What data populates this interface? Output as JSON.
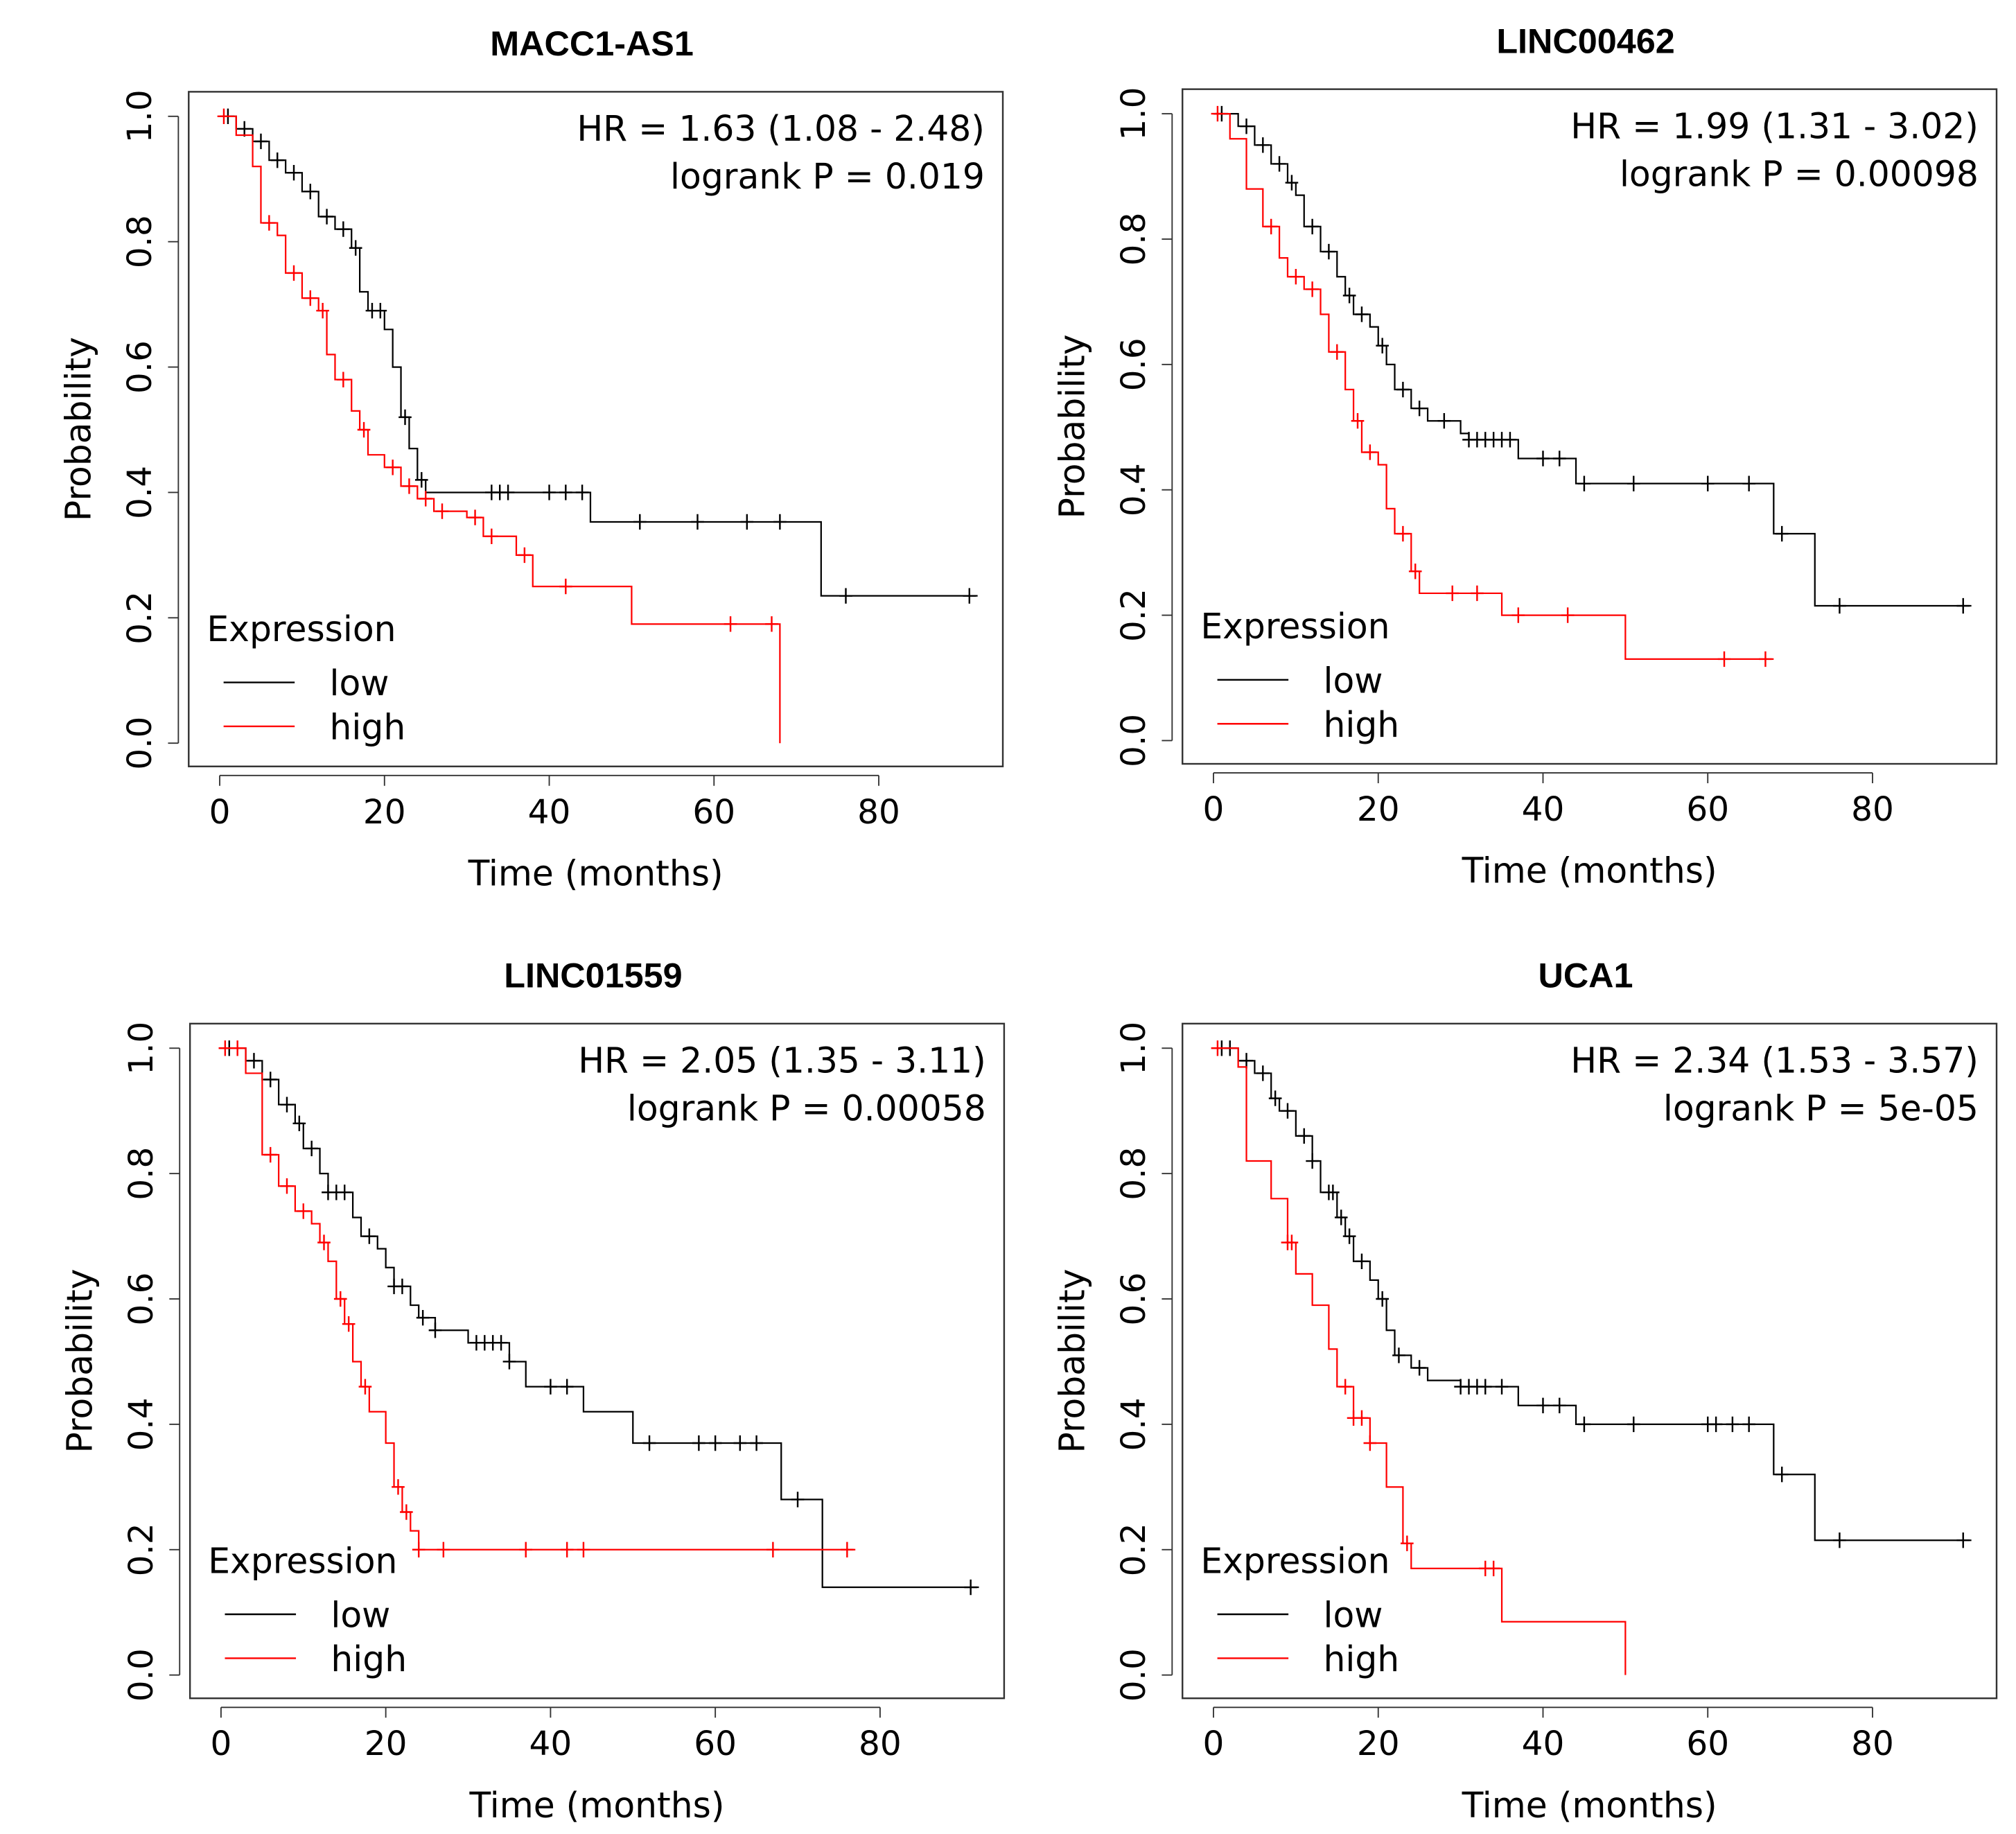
{
  "chart_data": [
    {
      "type": "line",
      "title": "MACC1-AS1",
      "xlabel": "Time (months)",
      "ylabel": "Probability",
      "xlim": [
        0,
        92
      ],
      "ylim": [
        0,
        1
      ],
      "xticks": [
        "0",
        "20",
        "40",
        "60",
        "80"
      ],
      "yticks": [
        "0.0",
        "0.2",
        "0.4",
        "0.6",
        "0.8",
        "1.0"
      ],
      "hr_text": "HR = 1.63 (1.08 - 2.48)",
      "p_text": "logrank P = 0.019",
      "legend": {
        "title": "Expression",
        "position": "bottom-left",
        "entries": [
          "low",
          "high"
        ]
      },
      "series": [
        {
          "name": "low",
          "color": "#000000",
          "steps": [
            [
              0,
              1
            ],
            [
              2,
              0.98
            ],
            [
              4,
              0.96
            ],
            [
              6,
              0.93
            ],
            [
              8,
              0.91
            ],
            [
              10,
              0.88
            ],
            [
              12,
              0.84
            ],
            [
              14,
              0.82
            ],
            [
              16,
              0.79
            ],
            [
              17,
              0.72
            ],
            [
              18,
              0.69
            ],
            [
              20,
              0.66
            ],
            [
              21,
              0.6
            ],
            [
              22,
              0.52
            ],
            [
              23,
              0.47
            ],
            [
              24,
              0.42
            ],
            [
              25,
              0.4
            ],
            [
              45,
              0.353
            ],
            [
              73,
              0.235
            ],
            [
              92,
              0.235
            ]
          ],
          "censor": [
            1,
            3,
            5,
            7,
            9,
            11,
            13,
            15,
            16.5,
            18.5,
            19.5,
            22.5,
            24.5,
            33,
            34,
            35,
            40,
            42,
            44,
            51,
            58,
            64,
            68,
            76,
            91
          ]
        },
        {
          "name": "high",
          "color": "#ff0000",
          "steps": [
            [
              0,
              1
            ],
            [
              2,
              0.97
            ],
            [
              4,
              0.92
            ],
            [
              5,
              0.83
            ],
            [
              7,
              0.81
            ],
            [
              8,
              0.75
            ],
            [
              10,
              0.71
            ],
            [
              12,
              0.69
            ],
            [
              13,
              0.62
            ],
            [
              14,
              0.58
            ],
            [
              16,
              0.53
            ],
            [
              17,
              0.5
            ],
            [
              18,
              0.46
            ],
            [
              20,
              0.44
            ],
            [
              22,
              0.41
            ],
            [
              24,
              0.39
            ],
            [
              26,
              0.37
            ],
            [
              30,
              0.36
            ],
            [
              32,
              0.33
            ],
            [
              36,
              0.3
            ],
            [
              38,
              0.25
            ],
            [
              50,
              0.19
            ],
            [
              68,
              0.19
            ],
            [
              68,
              0
            ]
          ],
          "censor": [
            0.5,
            6,
            9,
            11,
            12.5,
            15,
            17.5,
            21,
            23,
            25,
            27,
            31,
            33,
            37,
            42,
            62,
            67
          ]
        }
      ]
    },
    {
      "type": "line",
      "title": "LINC00462",
      "xlabel": "Time (months)",
      "ylabel": "Probability",
      "xlim": [
        0,
        92
      ],
      "ylim": [
        0,
        1
      ],
      "xticks": [
        "0",
        "20",
        "40",
        "60",
        "80"
      ],
      "yticks": [
        "0.0",
        "0.2",
        "0.4",
        "0.6",
        "0.8",
        "1.0"
      ],
      "hr_text": "HR = 1.99 (1.31 - 3.02)",
      "p_text": "logrank P = 0.00098",
      "legend": {
        "title": "Expression",
        "position": "bottom-left",
        "entries": [
          "low",
          "high"
        ]
      },
      "series": [
        {
          "name": "low",
          "color": "#000000",
          "steps": [
            [
              0,
              1
            ],
            [
              3,
              0.98
            ],
            [
              5,
              0.95
            ],
            [
              7,
              0.92
            ],
            [
              9,
              0.89
            ],
            [
              10,
              0.87
            ],
            [
              11,
              0.82
            ],
            [
              13,
              0.78
            ],
            [
              15,
              0.74
            ],
            [
              16,
              0.71
            ],
            [
              17,
              0.68
            ],
            [
              19,
              0.66
            ],
            [
              20,
              0.63
            ],
            [
              21,
              0.6
            ],
            [
              22,
              0.56
            ],
            [
              24,
              0.53
            ],
            [
              26,
              0.51
            ],
            [
              30,
              0.49
            ],
            [
              31,
              0.48
            ],
            [
              37,
              0.45
            ],
            [
              44,
              0.41
            ],
            [
              67,
              0.41
            ],
            [
              68,
              0.33
            ],
            [
              73,
              0.215
            ],
            [
              92,
              0.215
            ]
          ],
          "censor": [
            1,
            4,
            6,
            8,
            9.5,
            12,
            14,
            16.5,
            18,
            20.5,
            23,
            25,
            28,
            31,
            32,
            33,
            34,
            35,
            36,
            40,
            42,
            45,
            51,
            60,
            65,
            69,
            76,
            91
          ]
        },
        {
          "name": "high",
          "color": "#ff0000",
          "steps": [
            [
              0,
              1
            ],
            [
              2,
              0.96
            ],
            [
              4,
              0.88
            ],
            [
              6,
              0.82
            ],
            [
              8,
              0.77
            ],
            [
              9,
              0.74
            ],
            [
              11,
              0.72
            ],
            [
              13,
              0.68
            ],
            [
              14,
              0.62
            ],
            [
              16,
              0.56
            ],
            [
              17,
              0.51
            ],
            [
              18,
              0.46
            ],
            [
              20,
              0.44
            ],
            [
              21,
              0.37
            ],
            [
              22,
              0.33
            ],
            [
              24,
              0.27
            ],
            [
              25,
              0.235
            ],
            [
              35,
              0.2
            ],
            [
              50,
              0.13
            ],
            [
              68,
              0.13
            ]
          ],
          "censor": [
            0.5,
            7,
            10,
            12,
            15,
            17.5,
            19,
            23,
            24.5,
            29,
            32,
            37,
            43,
            62,
            67
          ]
        }
      ]
    },
    {
      "type": "line",
      "title": "LINC01559",
      "xlabel": "Time (months)",
      "ylabel": "Probability",
      "xlim": [
        0,
        92
      ],
      "ylim": [
        0,
        1
      ],
      "xticks": [
        "0",
        "20",
        "40",
        "60",
        "80"
      ],
      "yticks": [
        "0.0",
        "0.2",
        "0.4",
        "0.6",
        "0.8",
        "1.0"
      ],
      "hr_text": "HR = 2.05 (1.35 - 3.11)",
      "p_text": "logrank P = 0.00058",
      "legend": {
        "title": "Expression",
        "position": "bottom-left",
        "entries": [
          "low",
          "high"
        ]
      },
      "series": [
        {
          "name": "low",
          "color": "#000000",
          "steps": [
            [
              0,
              1
            ],
            [
              3,
              0.98
            ],
            [
              5,
              0.95
            ],
            [
              7,
              0.91
            ],
            [
              9,
              0.88
            ],
            [
              10,
              0.84
            ],
            [
              12,
              0.8
            ],
            [
              13,
              0.77
            ],
            [
              16,
              0.73
            ],
            [
              17,
              0.7
            ],
            [
              19,
              0.68
            ],
            [
              20,
              0.65
            ],
            [
              21,
              0.62
            ],
            [
              23,
              0.59
            ],
            [
              24,
              0.57
            ],
            [
              26,
              0.55
            ],
            [
              30,
              0.53
            ],
            [
              35,
              0.5
            ],
            [
              37,
              0.46
            ],
            [
              44,
              0.42
            ],
            [
              50,
              0.37
            ],
            [
              68,
              0.28
            ],
            [
              73,
              0.14
            ],
            [
              92,
              0.14
            ]
          ],
          "censor": [
            1,
            4,
            6,
            8,
            9.5,
            11,
            13,
            14,
            15,
            18,
            21,
            22,
            24.5,
            26,
            31,
            32,
            33,
            34,
            35,
            40,
            42,
            52,
            58,
            60,
            63,
            65,
            70,
            91
          ]
        },
        {
          "name": "high",
          "color": "#ff0000",
          "steps": [
            [
              0,
              1
            ],
            [
              3,
              0.96
            ],
            [
              5,
              0.83
            ],
            [
              7,
              0.78
            ],
            [
              9,
              0.74
            ],
            [
              11,
              0.72
            ],
            [
              12,
              0.69
            ],
            [
              13,
              0.66
            ],
            [
              14,
              0.6
            ],
            [
              15,
              0.56
            ],
            [
              16,
              0.5
            ],
            [
              17,
              0.46
            ],
            [
              18,
              0.42
            ],
            [
              20,
              0.37
            ],
            [
              21,
              0.3
            ],
            [
              22,
              0.26
            ],
            [
              23,
              0.23
            ],
            [
              24,
              0.2
            ],
            [
              77,
              0.2
            ]
          ],
          "censor": [
            0.5,
            2,
            6,
            8,
            10,
            12.5,
            14.5,
            15.5,
            17.5,
            21.5,
            22.5,
            24,
            27,
            37,
            42,
            44,
            67,
            76
          ]
        }
      ]
    },
    {
      "type": "line",
      "title": "UCA1",
      "xlabel": "Time (months)",
      "ylabel": "Probability",
      "xlim": [
        0,
        92
      ],
      "ylim": [
        0,
        1
      ],
      "xticks": [
        "0",
        "20",
        "40",
        "60",
        "80"
      ],
      "yticks": [
        "0.0",
        "0.2",
        "0.4",
        "0.6",
        "0.8",
        "1.0"
      ],
      "hr_text": "HR = 2.34 (1.53 - 3.57)",
      "p_text": "logrank P = 5e-05",
      "legend": {
        "title": "Expression",
        "position": "bottom-left",
        "entries": [
          "low",
          "high"
        ]
      },
      "series": [
        {
          "name": "low",
          "color": "#000000",
          "steps": [
            [
              0,
              1
            ],
            [
              3,
              0.98
            ],
            [
              5,
              0.96
            ],
            [
              7,
              0.92
            ],
            [
              8,
              0.9
            ],
            [
              10,
              0.86
            ],
            [
              12,
              0.82
            ],
            [
              13,
              0.77
            ],
            [
              15,
              0.73
            ],
            [
              16,
              0.7
            ],
            [
              17,
              0.66
            ],
            [
              19,
              0.63
            ],
            [
              20,
              0.6
            ],
            [
              21,
              0.55
            ],
            [
              22,
              0.51
            ],
            [
              24,
              0.49
            ],
            [
              26,
              0.47
            ],
            [
              30,
              0.46
            ],
            [
              37,
              0.43
            ],
            [
              44,
              0.4
            ],
            [
              67,
              0.4
            ],
            [
              68,
              0.32
            ],
            [
              73,
              0.215
            ],
            [
              92,
              0.215
            ]
          ],
          "censor": [
            1,
            2,
            4,
            6,
            7.5,
            9,
            11,
            12,
            14,
            14.5,
            15.5,
            16.5,
            18,
            20.5,
            22.5,
            25,
            30,
            31,
            32,
            33,
            35,
            40,
            42,
            45,
            51,
            60,
            61,
            63,
            65,
            69,
            76,
            91
          ]
        },
        {
          "name": "high",
          "color": "#ff0000",
          "steps": [
            [
              0,
              1
            ],
            [
              3,
              0.97
            ],
            [
              4,
              0.82
            ],
            [
              7,
              0.76
            ],
            [
              9,
              0.69
            ],
            [
              10,
              0.64
            ],
            [
              12,
              0.59
            ],
            [
              14,
              0.52
            ],
            [
              15,
              0.46
            ],
            [
              17,
              0.41
            ],
            [
              19,
              0.37
            ],
            [
              21,
              0.3
            ],
            [
              23,
              0.21
            ],
            [
              24,
              0.17
            ],
            [
              35,
              0.085
            ],
            [
              50,
              0.085
            ],
            [
              50,
              0
            ]
          ],
          "censor": [
            0.5,
            9,
            9.5,
            16,
            17,
            18,
            19,
            23.5,
            33,
            34
          ]
        }
      ]
    }
  ]
}
